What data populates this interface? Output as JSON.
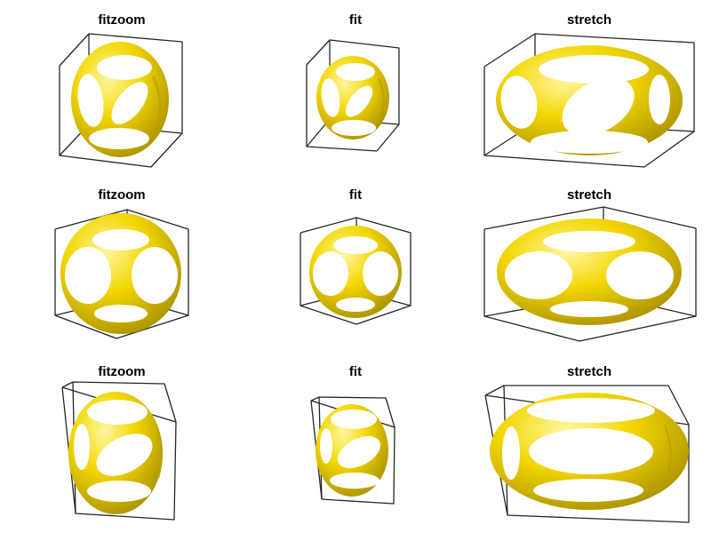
{
  "figure": {
    "rows": [
      {
        "panels": [
          {
            "title": "fitzoom"
          },
          {
            "title": "fit"
          },
          {
            "title": "stretch"
          }
        ]
      },
      {
        "panels": [
          {
            "title": "fitzoom"
          },
          {
            "title": "fit"
          },
          {
            "title": "stretch"
          }
        ]
      },
      {
        "panels": [
          {
            "title": "fitzoom"
          },
          {
            "title": "fit"
          },
          {
            "title": "stretch"
          }
        ]
      }
    ]
  },
  "colors": {
    "surface": "#f2d600",
    "surface_light": "#fff7a0",
    "surface_dark": "#b39b00",
    "box_edges": "#262626",
    "background": "#ffffff"
  }
}
